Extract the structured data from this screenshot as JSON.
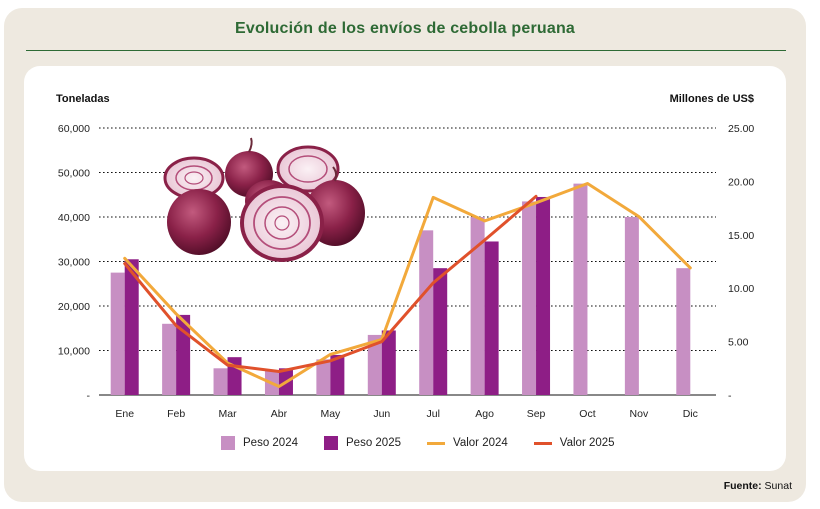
{
  "header": {
    "title": "Evolución de los envíos de cebolla peruana"
  },
  "footer": {
    "source_label": "Fuente:",
    "source_value": "Sunat"
  },
  "colors": {
    "title": "#2e6a35",
    "peso_2024": "#c78fc3",
    "peso_2025": "#8e1e86",
    "valor_2024": "#f2a93b",
    "valor_2025": "#e0512b"
  },
  "chart_data": {
    "type": "bar",
    "title": "Evolución de los envíos de cebolla peruana",
    "ylabel": "Toneladas",
    "y2label": "Millones de US$",
    "ylim": [
      0,
      60000
    ],
    "y2lim": [
      0,
      25
    ],
    "y_ticks": [
      "60,000",
      "50,000",
      "40,000",
      "30,000",
      "20,000",
      "10,000",
      "-"
    ],
    "y2_ticks": [
      "25.00",
      "20.00",
      "15.00",
      "10.00",
      "5.00",
      "-"
    ],
    "grid": "horizontal-dotted",
    "legend_position": "bottom",
    "categories": [
      "Ene",
      "Feb",
      "Mar",
      "Abr",
      "May",
      "Jun",
      "Jul",
      "Ago",
      "Sep",
      "Oct",
      "Nov",
      "Dic"
    ],
    "series": [
      {
        "name": "Peso 2024",
        "type": "bar",
        "axis": "left",
        "values": [
          27500,
          16000,
          6000,
          5500,
          8000,
          13500,
          37000,
          40000,
          43500,
          47500,
          40000,
          28500
        ]
      },
      {
        "name": "Peso 2025",
        "type": "bar",
        "axis": "left",
        "values": [
          30500,
          18000,
          8500,
          6000,
          9000,
          14500,
          28500,
          34500,
          44500,
          null,
          null,
          null
        ]
      },
      {
        "name": "Valor 2024",
        "type": "line",
        "axis": "right",
        "values": [
          12.8,
          7.6,
          3.0,
          0.8,
          3.8,
          5.2,
          18.5,
          16.3,
          18.0,
          19.8,
          16.7,
          11.9
        ]
      },
      {
        "name": "Valor 2025",
        "type": "line",
        "axis": "right",
        "values": [
          12.3,
          6.5,
          2.8,
          2.2,
          3.2,
          5.0,
          10.5,
          14.5,
          18.6,
          null,
          null,
          null
        ]
      }
    ]
  }
}
